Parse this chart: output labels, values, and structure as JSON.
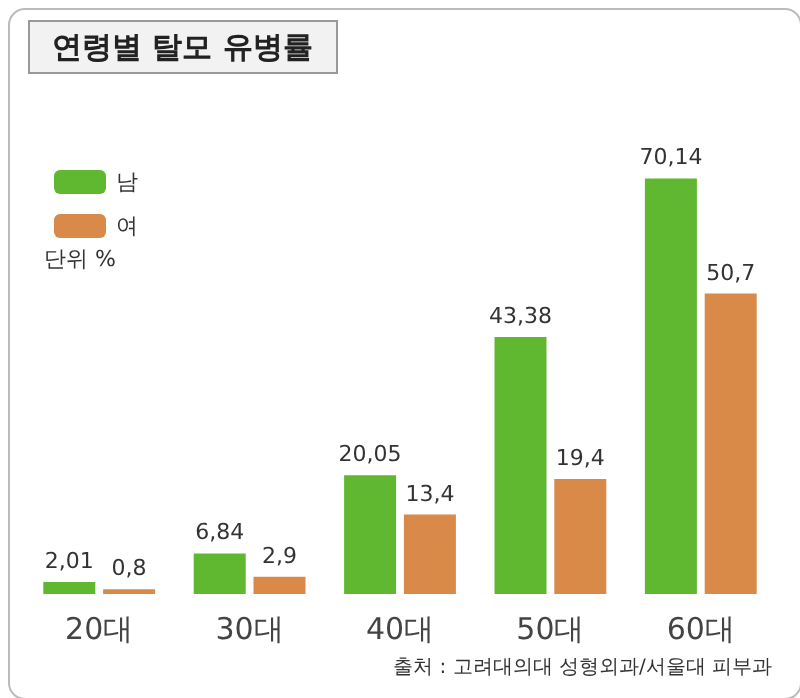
{
  "chart_data": {
    "type": "bar",
    "title": "연령별 탈모 유병률",
    "categories": [
      "20대",
      "30대",
      "40대",
      "50대",
      "60대"
    ],
    "series": [
      {
        "name": "남",
        "color": "#5fb82f",
        "values": [
          2.01,
          6.84,
          20.05,
          43.38,
          70.14
        ],
        "value_labels": [
          "2,01",
          "6,84",
          "20,05",
          "43,38",
          "70,14"
        ]
      },
      {
        "name": "여",
        "color": "#d98a48",
        "values": [
          0.8,
          2.9,
          13.4,
          19.4,
          50.7
        ],
        "value_labels": [
          "0,8",
          "2,9",
          "13,4",
          "19,4",
          "50,7"
        ]
      }
    ],
    "legend": "top left",
    "grid": false,
    "annotations": [
      "단위 %",
      "출처 : 고려대의대 성형외과/서울대 피부과"
    ]
  }
}
